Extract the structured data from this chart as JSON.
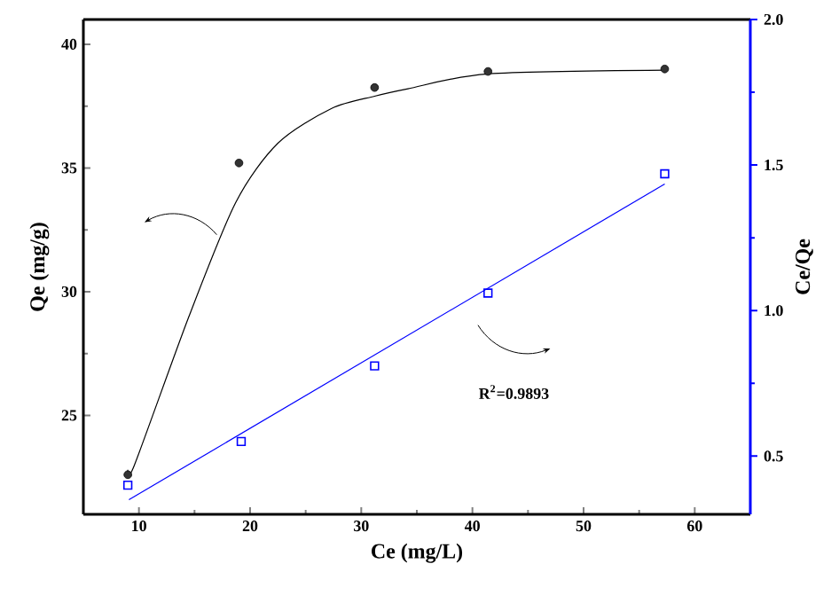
{
  "chart_data": {
    "type": "scatter",
    "xlabel": "Ce (mg/L)",
    "ylabel": "Qe (mg/g)",
    "y2label": "Ce/Qe",
    "xlim": [
      5,
      65
    ],
    "xticks": [
      10,
      20,
      30,
      40,
      50,
      60
    ],
    "ylim": [
      21,
      41
    ],
    "yticks": [
      25,
      30,
      35,
      40
    ],
    "y2lim": [
      0.3,
      2.0
    ],
    "y2ticks": [
      {
        "value": 0.5,
        "label": "0.5"
      },
      {
        "value": 1.0,
        "label": "1.0"
      },
      {
        "value": 1.5,
        "label": "1.5"
      },
      {
        "value": 2.0,
        "label": "2.0"
      }
    ],
    "series": [
      {
        "axis": "y",
        "marker": "circle",
        "color": "#333333",
        "x": [
          9,
          19.0,
          31.2,
          41.4,
          57.3
        ],
        "values": [
          22.6,
          35.2,
          38.25,
          38.9,
          39.0
        ]
      },
      {
        "type": "line",
        "axis": "y",
        "marker": "none",
        "color": "#000000",
        "x": [
          9,
          9.6,
          14.5,
          18.7,
          22.5,
          27.3,
          31.2,
          34.2,
          41.4,
          57.3
        ],
        "values": [
          22.8,
          23.0,
          29.0,
          33.6,
          36.0,
          37.4,
          37.9,
          38.2,
          38.8,
          38.95
        ]
      },
      {
        "axis": "y2",
        "marker": "square",
        "color": "#0000ff",
        "x": [
          9,
          19.2,
          31.2,
          41.4,
          57.3
        ],
        "values": [
          0.4,
          0.55,
          0.81,
          1.06,
          1.47
        ]
      },
      {
        "type": "line",
        "axis": "y2",
        "marker": "none",
        "color": "#0000ff",
        "x": [
          9.1,
          57.3
        ],
        "values": [
          0.35,
          1.435
        ]
      }
    ],
    "annotations": [
      "R$^{2}$=0.9893"
    ]
  }
}
